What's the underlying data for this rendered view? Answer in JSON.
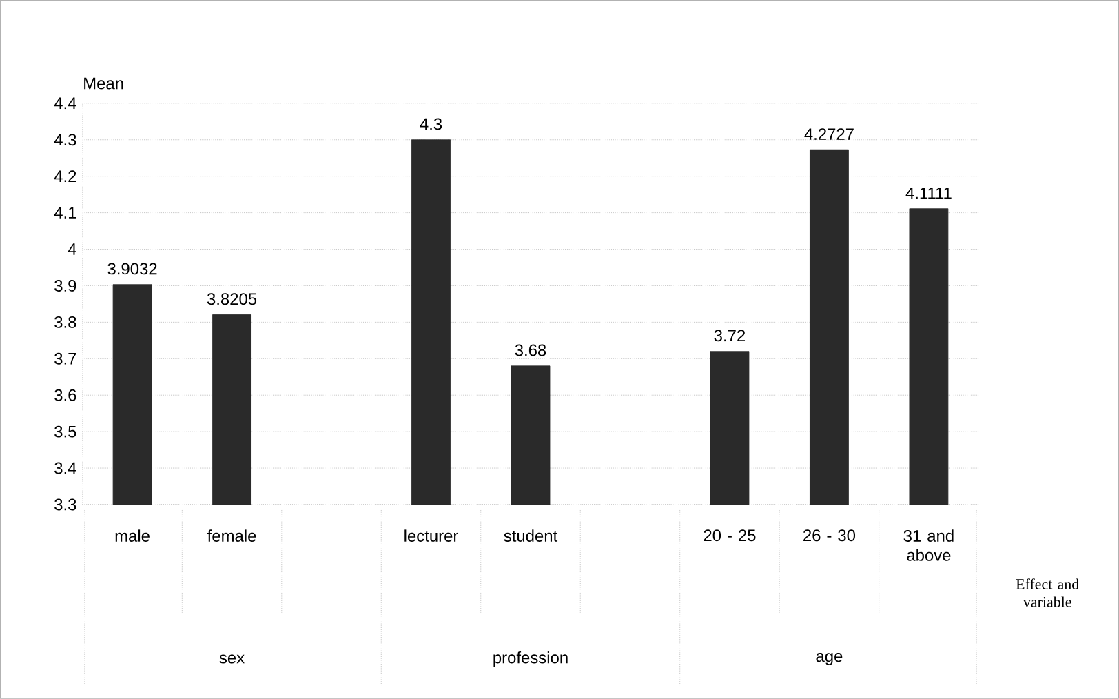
{
  "chart_data": {
    "type": "bar",
    "ylabel": "Mean",
    "xlabel": "Effect and variable",
    "categories": [
      "male",
      "female",
      null,
      "lecturer",
      "student",
      null,
      "20 - 25",
      "26 - 30",
      "31 and above"
    ],
    "values": [
      3.9032,
      3.8205,
      null,
      4.3,
      3.68,
      null,
      3.72,
      4.2727,
      4.1111
    ],
    "value_labels": [
      "3.9032",
      "3.8205",
      null,
      "4.3",
      "3.68",
      null,
      "3.72",
      "4.2727",
      "4.1111"
    ],
    "color": "#2a2a2a",
    "ylim": [
      3.3,
      4.4
    ],
    "yticks": [
      3.3,
      3.4,
      3.5,
      3.6,
      3.7,
      3.8,
      3.9,
      4,
      4.1,
      4.2,
      4.3,
      4.4
    ],
    "grid": "y",
    "annotations": [
      "sex",
      "profession",
      "age"
    ]
  }
}
